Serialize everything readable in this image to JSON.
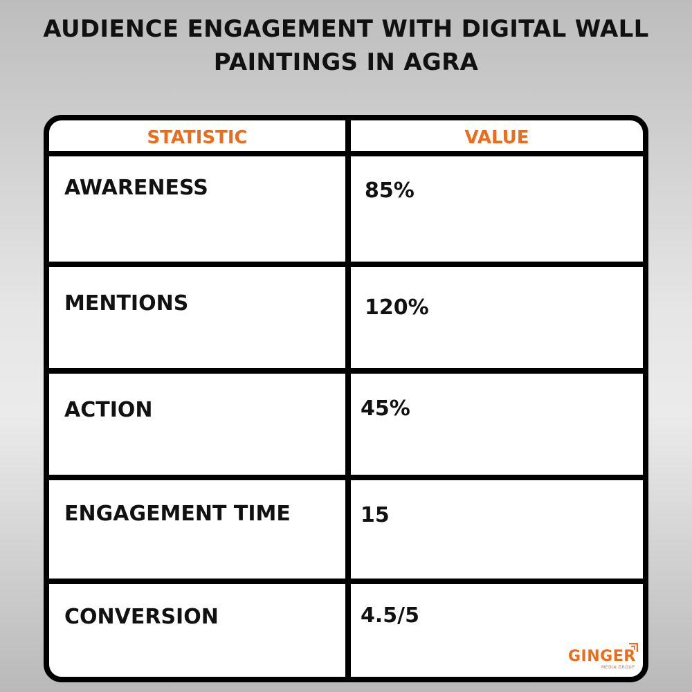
{
  "title": {
    "line1": "AUDIENCE ENGAGEMENT WITH DIGITAL WALL",
    "line2": "PAINTINGS IN AGRA"
  },
  "table": {
    "headers": [
      "STATISTIC",
      "VALUE"
    ],
    "rows": [
      {
        "statistic": "AWARENESS",
        "value": "85%"
      },
      {
        "statistic": "MENTIONS",
        "value": "120%"
      },
      {
        "statistic": "ACTION",
        "value": "45%"
      },
      {
        "statistic": "ENGAGEMENT TIME",
        "value": "15"
      },
      {
        "statistic": "CONVERSION",
        "value": "4.5/5"
      }
    ]
  },
  "logo": {
    "name": "GINGER",
    "tagline": "MEDIA GROUP",
    "icon": "ginger-mark-icon"
  },
  "colors": {
    "accent": "#ea6d1e",
    "border": "#000000",
    "text": "#111111"
  }
}
